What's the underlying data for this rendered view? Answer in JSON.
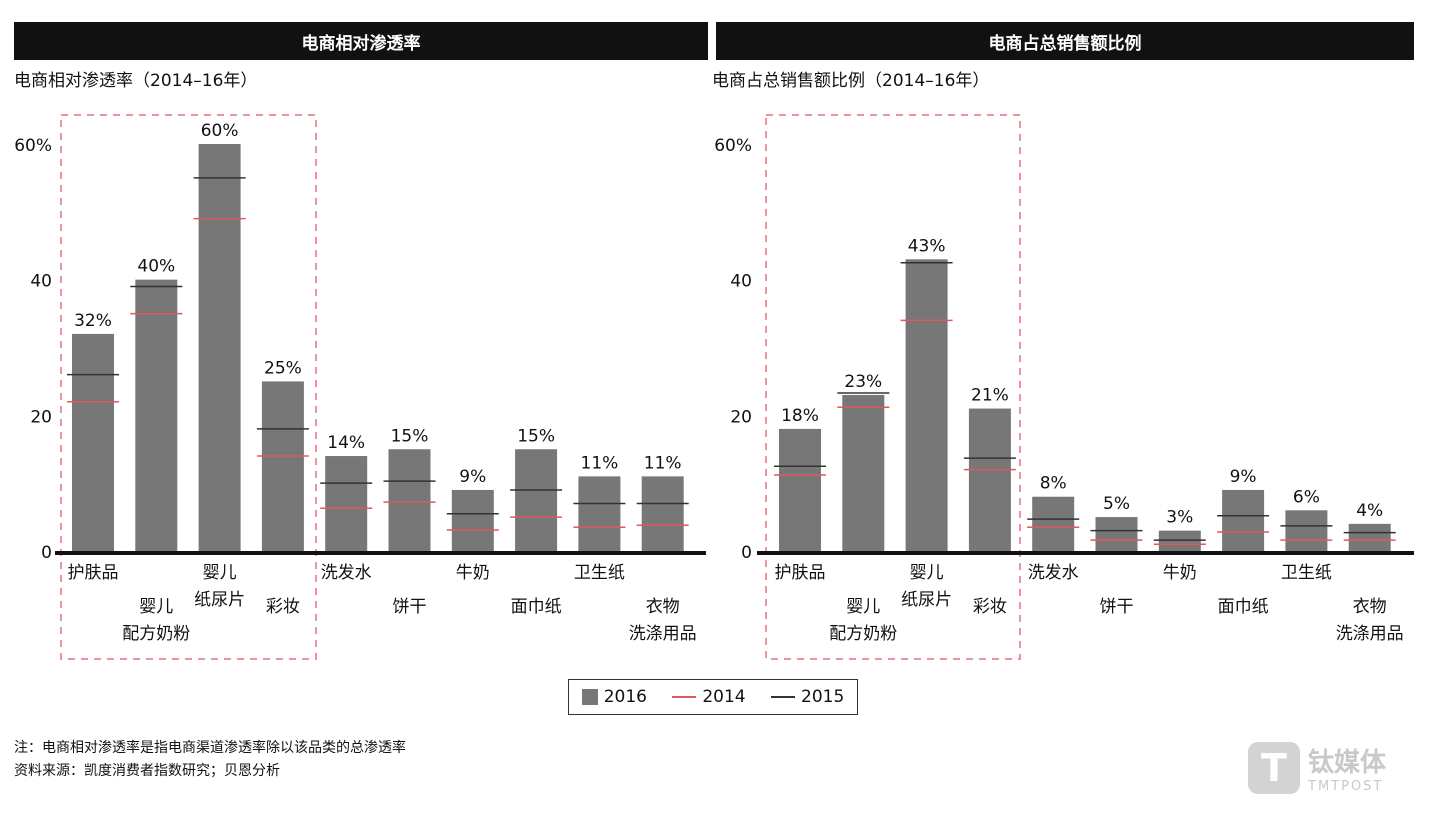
{
  "watermark": {
    "name": "钛媒体",
    "sub": "TMTPOST",
    "logo": "T"
  },
  "legend": [
    {
      "name": "2016",
      "color": "#777777",
      "kind": "bar"
    },
    {
      "name": "2014",
      "color": "#e0575f",
      "kind": "line"
    },
    {
      "name": "2015",
      "color": "#333333",
      "kind": "line"
    }
  ],
  "notes": [
    "注：电商相对渗透率是指电商渠道渗透率除以该品类的总渗透率",
    "资料来源：凯度消费者指数研究；贝恩分析"
  ],
  "chart_data": [
    {
      "type": "bar",
      "header": "电商相对渗透率",
      "title": "电商相对渗透率（2014–16年）",
      "ylim": [
        0,
        60
      ],
      "yticks": [
        "0",
        "20",
        "40",
        "60%"
      ],
      "categories": [
        [
          "护肤品"
        ],
        [
          "婴儿",
          "配方奶粉"
        ],
        [
          "婴儿",
          "纸尿片"
        ],
        [
          "彩妆"
        ],
        [
          "洗发水"
        ],
        [
          "饼干"
        ],
        [
          "牛奶"
        ],
        [
          "面巾纸"
        ],
        [
          "卫生纸"
        ],
        [
          "衣物",
          "洗涤用品"
        ]
      ],
      "series": [
        {
          "name": "2016",
          "values": [
            32,
            40,
            60,
            25,
            14,
            15,
            9,
            15,
            11,
            11
          ],
          "labels": [
            "32%",
            "40%",
            "60%",
            "25%",
            "14%",
            "15%",
            "9%",
            "15%",
            "11%",
            "11%"
          ]
        },
        {
          "name": "2014",
          "values": [
            22,
            35,
            49,
            14,
            6.3,
            7.2,
            3.1,
            5,
            3.5,
            3.8
          ]
        },
        {
          "name": "2015",
          "values": [
            26,
            39,
            55,
            18,
            10,
            10.3,
            5.5,
            9,
            7,
            7
          ]
        }
      ],
      "highlight": "前四个品类（红色虚线框）"
    },
    {
      "type": "bar",
      "header": "电商占总销售额比例",
      "title": "电商占总销售额比例（2014–16年）",
      "ylim": [
        0,
        60
      ],
      "yticks": [
        "0",
        "20",
        "40",
        "60%"
      ],
      "categories": [
        [
          "护肤品"
        ],
        [
          "婴儿",
          "配方奶粉"
        ],
        [
          "婴儿",
          "纸尿片"
        ],
        [
          "彩妆"
        ],
        [
          "洗发水"
        ],
        [
          "饼干"
        ],
        [
          "牛奶"
        ],
        [
          "面巾纸"
        ],
        [
          "卫生纸"
        ],
        [
          "衣物",
          "洗涤用品"
        ]
      ],
      "series": [
        {
          "name": "2016",
          "values": [
            18,
            23,
            43,
            21,
            8,
            5,
            3,
            9,
            6,
            4
          ],
          "labels": [
            "18%",
            "23%",
            "43%",
            "21%",
            "8%",
            "5%",
            "3%",
            "9%",
            "6%",
            "4%"
          ]
        },
        {
          "name": "2014",
          "values": [
            11.2,
            21.2,
            34,
            12,
            3.5,
            1.6,
            1,
            2.8,
            1.6,
            1.6
          ]
        },
        {
          "name": "2015",
          "values": [
            12.5,
            23.3,
            42.5,
            13.7,
            4.7,
            3,
            1.6,
            5.2,
            3.7,
            2.7
          ]
        }
      ],
      "highlight": "前四个品类（红色虚线框）"
    }
  ]
}
